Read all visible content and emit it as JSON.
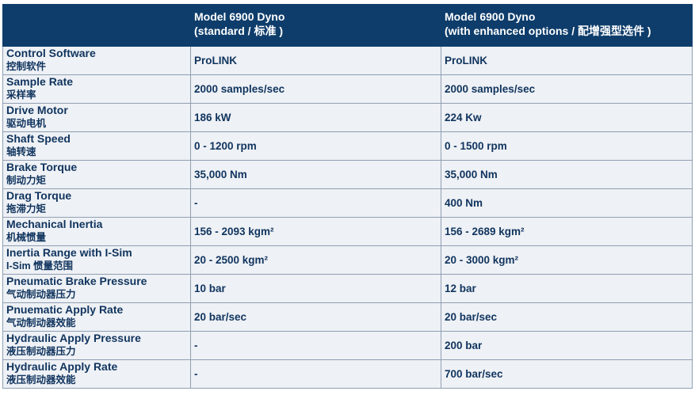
{
  "header": {
    "corner": "",
    "col1": {
      "title": "Model 6900 Dyno",
      "subtitle": "(standard / 标准 )"
    },
    "col2": {
      "title": "Model 6900 Dyno",
      "subtitle": " (with enhanced options / 配增强型选件 )"
    }
  },
  "rows": [
    {
      "label_en": "Control Software",
      "label_cn": "控制软件",
      "standard": "ProLINK",
      "enhanced": "ProLINK"
    },
    {
      "label_en": "Sample Rate",
      "label_cn": "采样率",
      "standard": "2000 samples/sec",
      "enhanced": "2000 samples/sec"
    },
    {
      "label_en": "Drive Motor",
      "label_cn": "驱动电机",
      "standard": "186 kW",
      "enhanced": "224 Kw"
    },
    {
      "label_en": "Shaft Speed",
      "label_cn": "轴转速",
      "standard": "0 - 1200 rpm",
      "enhanced": "0 - 1500 rpm"
    },
    {
      "label_en": "Brake Torque",
      "label_cn": "制动力矩",
      "standard": "35,000 Nm",
      "enhanced": "35,000 Nm"
    },
    {
      "label_en": "Drag Torque",
      "label_cn": "拖滞力矩",
      "standard": "-",
      "enhanced": "400 Nm"
    },
    {
      "label_en": "Mechanical Inertia",
      "label_cn": "机械惯量",
      "standard": "156 - 2093 kgm²",
      "enhanced": "156 - 2689 kgm²"
    },
    {
      "label_en": "Inertia Range with I-Sim",
      "label_cn": "I-Sim 惯量范围",
      "standard": "20 - 2500 kgm²",
      "enhanced": "20 - 3000 kgm²"
    },
    {
      "label_en": "Pneumatic Brake Pressure",
      "label_cn": "气动制动器压力",
      "standard": "10 bar",
      "enhanced": "12 bar"
    },
    {
      "label_en": "Pnuematic Apply Rate",
      "label_cn": "气动制动器效能",
      "standard": "20 bar/sec",
      "enhanced": "20 bar/sec"
    },
    {
      "label_en": "Hydraulic Apply Pressure",
      "label_cn": "液压制动器压力",
      "standard": "-",
      "enhanced": "200 bar"
    },
    {
      "label_en": "Hydraulic Apply Rate",
      "label_cn": "液压制动器效能",
      "standard": "-",
      "enhanced": "700 bar/sec"
    }
  ],
  "colors": {
    "header_bg": "#0e3d6b",
    "text": "#10345e",
    "cell_bg": "#eef1f5",
    "border": "#8f9fb3"
  }
}
